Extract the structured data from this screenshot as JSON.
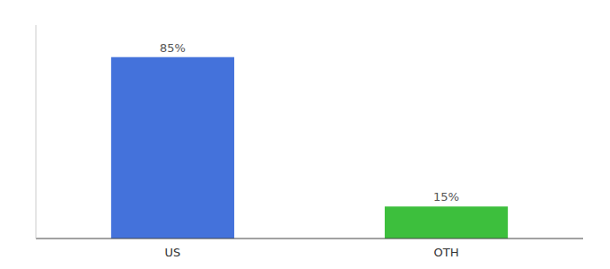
{
  "chart_data": {
    "type": "bar",
    "categories": [
      "US",
      "OTH"
    ],
    "values": [
      85,
      15
    ],
    "value_labels": [
      "85%",
      "15%"
    ],
    "colors": [
      "#4472db",
      "#3dbf3d"
    ],
    "ylim": [
      0,
      100
    ],
    "data_labels": true,
    "tick_labels": "x",
    "grid": false
  }
}
